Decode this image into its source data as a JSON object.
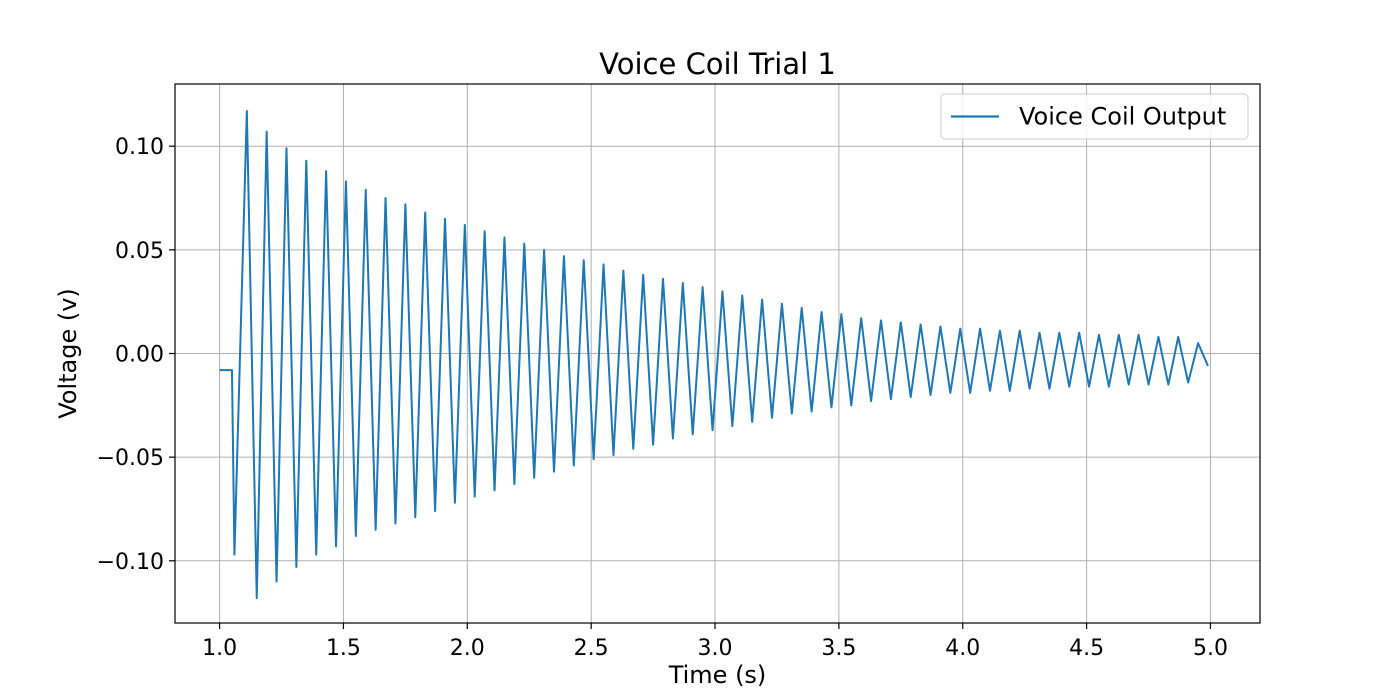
{
  "chart_data": {
    "type": "line",
    "title": "Voice Coil Trial 1",
    "xlabel": "Time (s)",
    "ylabel": "Voltage (v)",
    "xlim": [
      0.82,
      5.2
    ],
    "ylim": [
      -0.13,
      0.13
    ],
    "x_ticks": [
      1.0,
      1.5,
      2.0,
      2.5,
      3.0,
      3.5,
      4.0,
      4.5,
      5.0
    ],
    "x_tick_labels": [
      "1.0",
      "1.5",
      "2.0",
      "2.5",
      "3.0",
      "3.5",
      "4.0",
      "4.5",
      "5.0"
    ],
    "y_ticks": [
      -0.1,
      -0.05,
      0.0,
      0.05,
      0.1
    ],
    "y_tick_labels": [
      "−0.10",
      "−0.05",
      "0.00",
      "0.05",
      "0.10"
    ],
    "grid": true,
    "legend_position": "top-right",
    "series": [
      {
        "name": "Voice Coil Output",
        "color": "#1f77b4",
        "signal_description": "damped oscillation",
        "x": [
          1.0,
          1.05,
          1.06,
          1.11,
          1.15,
          1.19,
          1.23,
          1.27,
          1.31,
          1.35,
          1.39,
          1.43,
          1.47,
          1.51,
          1.55,
          1.59,
          1.63,
          1.67,
          1.71,
          1.75,
          1.79,
          1.83,
          1.87,
          1.91,
          1.95,
          1.99,
          2.03,
          2.07,
          2.11,
          2.15,
          2.19,
          2.23,
          2.27,
          2.31,
          2.35,
          2.39,
          2.43,
          2.47,
          2.51,
          2.55,
          2.59,
          2.63,
          2.67,
          2.71,
          2.75,
          2.79,
          2.83,
          2.87,
          2.91,
          2.95,
          2.99,
          3.03,
          3.07,
          3.11,
          3.15,
          3.19,
          3.23,
          3.27,
          3.31,
          3.35,
          3.39,
          3.43,
          3.47,
          3.51,
          3.55,
          3.59,
          3.63,
          3.67,
          3.71,
          3.75,
          3.79,
          3.83,
          3.87,
          3.91,
          3.95,
          3.99,
          4.03,
          4.07,
          4.11,
          4.15,
          4.19,
          4.23,
          4.27,
          4.31,
          4.35,
          4.39,
          4.43,
          4.47,
          4.51,
          4.55,
          4.59,
          4.63,
          4.67,
          4.71,
          4.75,
          4.79,
          4.83,
          4.87,
          4.91,
          4.95,
          4.99
        ],
        "y": [
          -0.008,
          -0.008,
          -0.097,
          0.117,
          -0.118,
          0.107,
          -0.11,
          0.099,
          -0.103,
          0.093,
          -0.097,
          0.088,
          -0.093,
          0.083,
          -0.088,
          0.079,
          -0.085,
          0.075,
          -0.082,
          0.072,
          -0.079,
          0.068,
          -0.076,
          0.065,
          -0.072,
          0.062,
          -0.069,
          0.059,
          -0.066,
          0.056,
          -0.063,
          0.053,
          -0.06,
          0.05,
          -0.057,
          0.047,
          -0.054,
          0.045,
          -0.051,
          0.043,
          -0.049,
          0.04,
          -0.046,
          0.038,
          -0.044,
          0.036,
          -0.041,
          0.034,
          -0.039,
          0.032,
          -0.037,
          0.03,
          -0.035,
          0.028,
          -0.033,
          0.026,
          -0.031,
          0.024,
          -0.029,
          0.022,
          -0.028,
          0.02,
          -0.026,
          0.019,
          -0.025,
          0.017,
          -0.023,
          0.016,
          -0.022,
          0.015,
          -0.021,
          0.014,
          -0.02,
          0.013,
          -0.019,
          0.012,
          -0.019,
          0.012,
          -0.018,
          0.011,
          -0.018,
          0.011,
          -0.017,
          0.01,
          -0.017,
          0.01,
          -0.016,
          0.01,
          -0.016,
          0.009,
          -0.016,
          0.009,
          -0.015,
          0.009,
          -0.015,
          0.008,
          -0.015,
          0.008,
          -0.014,
          0.005,
          -0.006
        ]
      }
    ]
  }
}
